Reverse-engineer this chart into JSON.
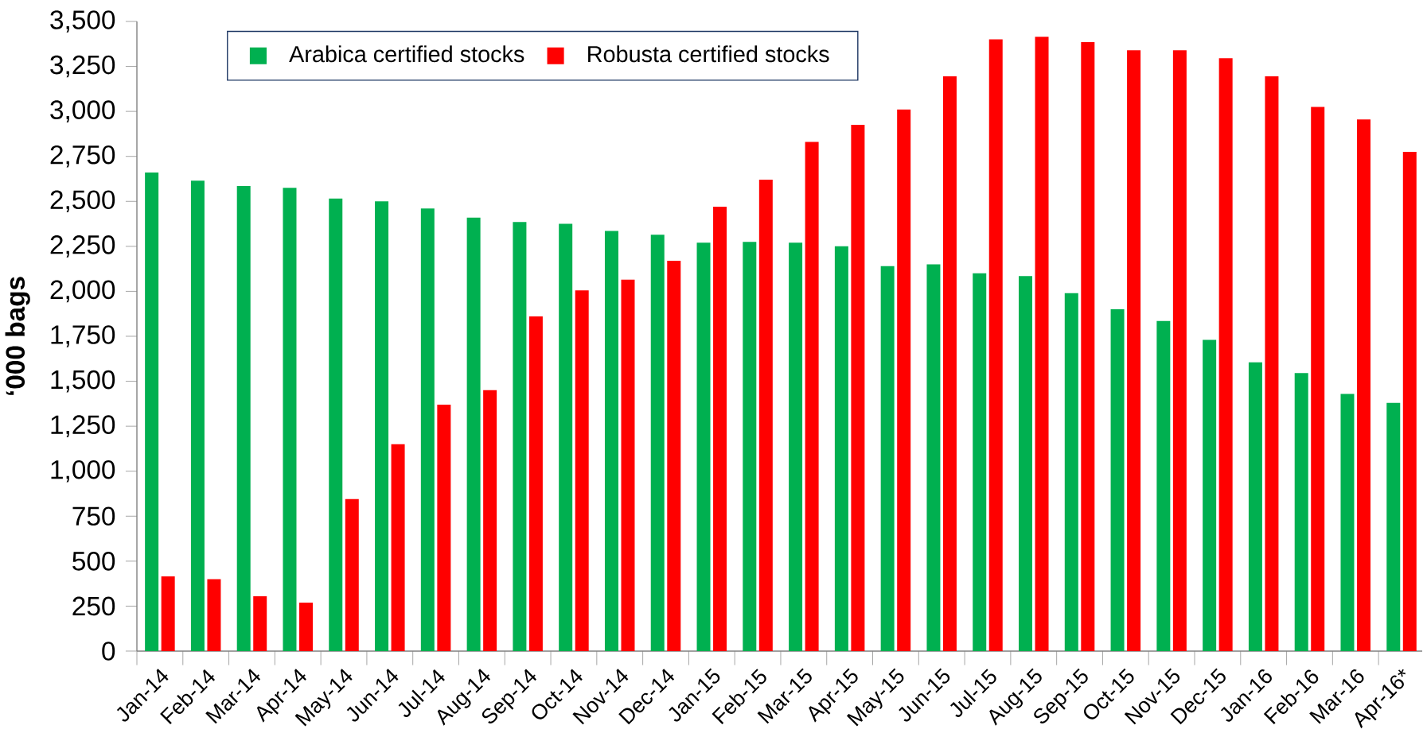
{
  "chart_data": {
    "type": "bar",
    "ylabel": "‘000 bags",
    "categories": [
      "Jan-14",
      "Feb-14",
      "Mar-14",
      "Apr-14",
      "May-14",
      "Jun-14",
      "Jul-14",
      "Aug-14",
      "Sep-14",
      "Oct-14",
      "Nov-14",
      "Dec-14",
      "Jan-15",
      "Feb-15",
      "Mar-15",
      "Apr-15",
      "May-15",
      "Jun-15",
      "Jul-15",
      "Aug-15",
      "Sep-15",
      "Oct-15",
      "Nov-15",
      "Dec-15",
      "Jan-16",
      "Feb-16",
      "Mar-16",
      "Apr-16*"
    ],
    "series": [
      {
        "name": "Arabica certified stocks",
        "color": "#00b050",
        "values": [
          2660,
          2615,
          2585,
          2575,
          2515,
          2500,
          2460,
          2410,
          2385,
          2375,
          2335,
          2315,
          2270,
          2275,
          2270,
          2250,
          2140,
          2150,
          2100,
          2085,
          1990,
          1900,
          1835,
          1730,
          1605,
          1545,
          1430,
          1380
        ]
      },
      {
        "name": "Robusta certified stocks",
        "color": "#ff0000",
        "values": [
          415,
          400,
          305,
          270,
          845,
          1150,
          1370,
          1450,
          1860,
          2005,
          2065,
          2170,
          2470,
          2620,
          2830,
          2925,
          3010,
          3195,
          3400,
          3415,
          3385,
          3340,
          3340,
          3295,
          3195,
          3025,
          2955,
          2775
        ]
      }
    ],
    "ylim": [
      0,
      3500
    ],
    "yticks": [
      0,
      250,
      500,
      750,
      {
        "value": 1000,
        "label": "1,000"
      },
      {
        "value": 1250,
        "label": "1,250"
      },
      {
        "value": 1500,
        "label": "1,500"
      },
      {
        "value": 1750,
        "label": "1,750"
      },
      {
        "value": 2000,
        "label": "2,000"
      },
      {
        "value": 2250,
        "label": "2,250"
      },
      {
        "value": 2500,
        "label": "2,500"
      },
      {
        "value": 2750,
        "label": "2,750"
      },
      {
        "value": 3000,
        "label": "3,000"
      },
      {
        "value": 3250,
        "label": "3,250"
      },
      {
        "value": 3500,
        "label": "3,500"
      }
    ],
    "legend": "top left"
  }
}
